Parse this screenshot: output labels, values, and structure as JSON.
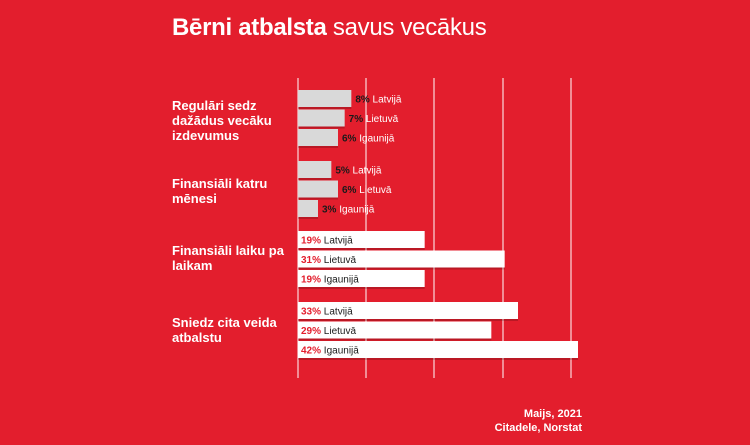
{
  "title_bold": "Bērni atbalsta",
  "title_light": "savus vecākus",
  "chart_data": {
    "type": "bar",
    "orientation": "horizontal",
    "title": "Bērni atbalsta savus vecākus",
    "categories": [
      "Regulāri sedz dažādus vecāku izdevumus",
      "Finansiāli katru mēnesi",
      "Finansiāli laiku pa laikam",
      "Sniedz cita veida atbalstu"
    ],
    "series": [
      {
        "name": "Latvijā",
        "values": [
          8,
          5,
          19,
          33
        ],
        "labels": [
          "8%",
          "5%",
          "19%",
          "33%"
        ]
      },
      {
        "name": "Lietuvā",
        "values": [
          7,
          6,
          31,
          29
        ],
        "labels": [
          "7%",
          "6%",
          "31%",
          "29%"
        ]
      },
      {
        "name": "Igaunijā",
        "values": [
          6,
          3,
          19,
          42
        ],
        "labels": [
          "6%",
          "3%",
          "19%",
          "42%"
        ]
      }
    ],
    "unit": "%",
    "xlim": [
      0,
      42
    ],
    "grid": true,
    "colors": {
      "background": "#e31e2d",
      "bar_small": "#d9d9d9",
      "bar_large": "#ffffff",
      "text_light": "#ffffff",
      "text_dark": "#1a1a1a",
      "value_on_white": "#e31e2d",
      "gridline": "#ffffff"
    }
  },
  "source": {
    "line1": "Maijs, 2021",
    "line2": "Citadele, Norstat"
  }
}
